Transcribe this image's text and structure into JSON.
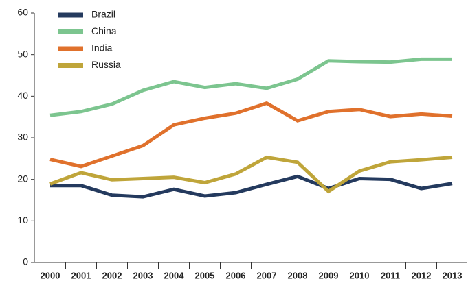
{
  "chart_data": {
    "type": "line",
    "categories": [
      "2000",
      "2001",
      "2002",
      "2003",
      "2004",
      "2005",
      "2006",
      "2007",
      "2008",
      "2009",
      "2010",
      "2011",
      "2012",
      "2013"
    ],
    "series": [
      {
        "name": "Brazil",
        "color": "#243a5e",
        "values": [
          18.5,
          18.5,
          16.2,
          15.8,
          17.6,
          16,
          16.8,
          18.8,
          20.7,
          17.8,
          20.2,
          20,
          17.8,
          19
        ]
      },
      {
        "name": "China",
        "color": "#7cc58f",
        "values": [
          35.4,
          36.3,
          38.1,
          41.4,
          43.5,
          42.1,
          43.0,
          41.9,
          44.1,
          48.5,
          48.3,
          48.2,
          48.9,
          48.9
        ]
      },
      {
        "name": "India",
        "color": "#e0712c",
        "values": [
          24.8,
          23.1,
          25.6,
          28.1,
          33.1,
          34.7,
          35.9,
          38.3,
          34.1,
          36.3,
          36.8,
          35.1,
          35.7,
          35.2
        ]
      },
      {
        "name": "Russia",
        "color": "#bfa53a",
        "values": [
          18.9,
          21.6,
          19.9,
          20.2,
          20.5,
          19.2,
          21.3,
          25.3,
          24.1,
          17.1,
          22.0,
          24.2,
          24.7,
          25.3
        ]
      }
    ],
    "ylim": [
      0,
      60
    ],
    "yticks": [
      0,
      10,
      20,
      30,
      40,
      50,
      60
    ],
    "grid": false,
    "legend": "top-left"
  }
}
